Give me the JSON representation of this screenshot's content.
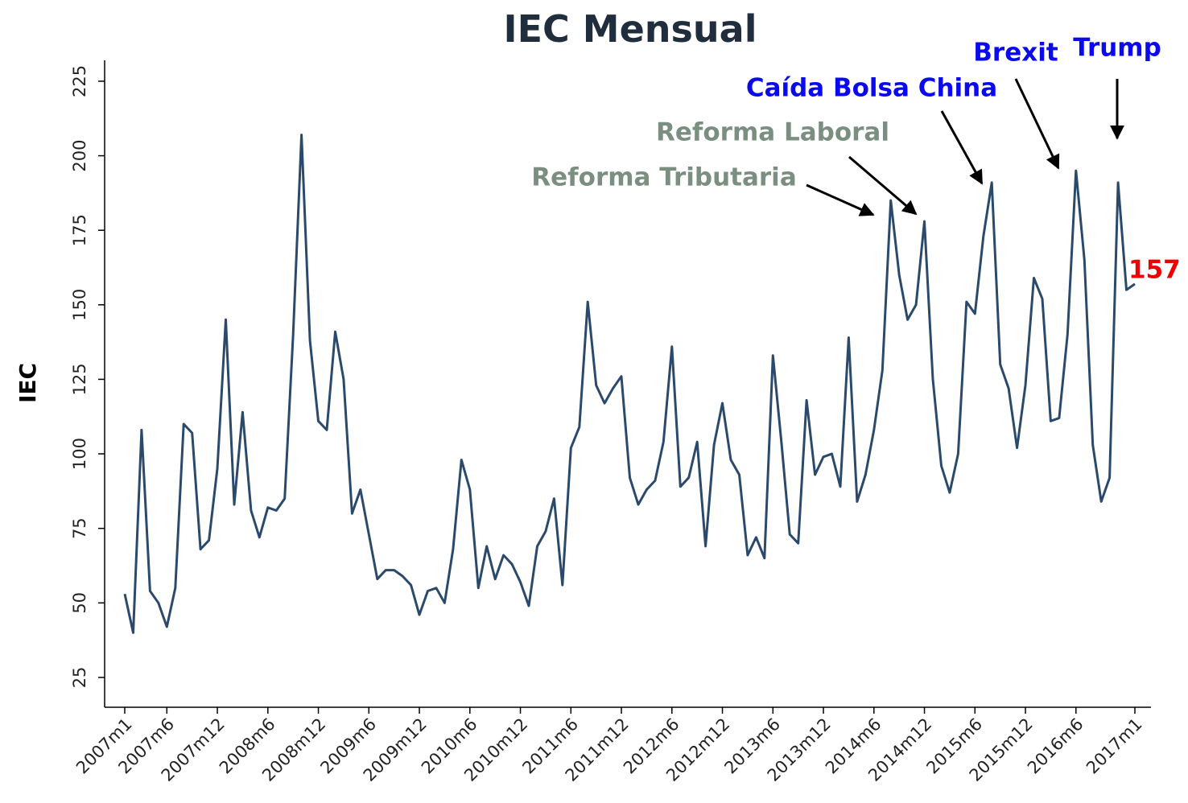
{
  "chart_data": {
    "type": "line",
    "title": "IEC Mensual",
    "y_label": "IEC",
    "categories": [
      "2007m1",
      null,
      null,
      null,
      null,
      "2007m6",
      null,
      null,
      null,
      null,
      null,
      "2007m12",
      null,
      null,
      null,
      null,
      null,
      "2008m6",
      null,
      null,
      null,
      null,
      null,
      "2008m12",
      null,
      null,
      null,
      null,
      null,
      "2009m6",
      null,
      null,
      null,
      null,
      null,
      "2009m12",
      null,
      null,
      null,
      null,
      null,
      "2010m6",
      null,
      null,
      null,
      null,
      null,
      "2010m12",
      null,
      null,
      null,
      null,
      null,
      "2011m6",
      null,
      null,
      null,
      null,
      null,
      "2011m12",
      null,
      null,
      null,
      null,
      null,
      "2012m6",
      null,
      null,
      null,
      null,
      null,
      "2012m12",
      null,
      null,
      null,
      null,
      null,
      "2013m6",
      null,
      null,
      null,
      null,
      null,
      "2013m12",
      null,
      null,
      null,
      null,
      null,
      "2014m6",
      null,
      null,
      null,
      null,
      null,
      "2014m12",
      null,
      null,
      null,
      null,
      null,
      "2015m6",
      null,
      null,
      null,
      null,
      null,
      "2015m12",
      null,
      null,
      null,
      null,
      null,
      "2016m6",
      null,
      null,
      null,
      null,
      null,
      null,
      "2017m1"
    ],
    "series": [
      {
        "name": "IEC",
        "color": "#2b4a6b",
        "values": [
          53,
          40,
          108,
          54,
          50,
          42,
          55,
          110,
          107,
          68,
          71,
          95,
          145,
          83,
          114,
          81,
          72,
          82,
          81,
          85,
          140,
          207,
          138,
          111,
          108,
          141,
          125,
          80,
          88,
          73,
          58,
          61,
          61,
          59,
          56,
          46,
          54,
          55,
          50,
          68,
          98,
          88,
          55,
          69,
          58,
          66,
          63,
          57,
          49,
          69,
          74,
          85,
          56,
          102,
          109,
          151,
          123,
          117,
          122,
          126,
          92,
          83,
          88,
          91,
          104,
          136,
          89,
          92,
          104,
          69,
          103,
          117,
          98,
          93,
          66,
          72,
          65,
          133,
          104,
          73,
          70,
          118,
          93,
          99,
          100,
          89,
          139,
          84,
          93,
          108,
          128,
          185,
          160,
          145,
          150,
          178,
          125,
          96,
          87,
          100,
          151,
          147,
          173,
          191,
          130,
          122,
          102,
          123,
          159,
          152,
          111,
          112,
          140,
          195,
          165,
          103,
          84,
          92,
          191,
          155,
          157
        ]
      }
    ],
    "ylim": [
      15,
      232
    ],
    "yticks": [
      25,
      50,
      75,
      100,
      125,
      150,
      175,
      200,
      225
    ],
    "annotations": [
      {
        "text": "Reforma Tributaria",
        "color": "#7a8f80"
      },
      {
        "text": "Reforma Laboral",
        "color": "#7a8f80"
      },
      {
        "text": "Caída Bolsa China",
        "color": "#0a0aee"
      },
      {
        "text": "Brexit",
        "color": "#0a0aee"
      },
      {
        "text": "Trump",
        "color": "#0a0aee"
      },
      {
        "text": "157",
        "color": "#ee0000"
      }
    ]
  }
}
